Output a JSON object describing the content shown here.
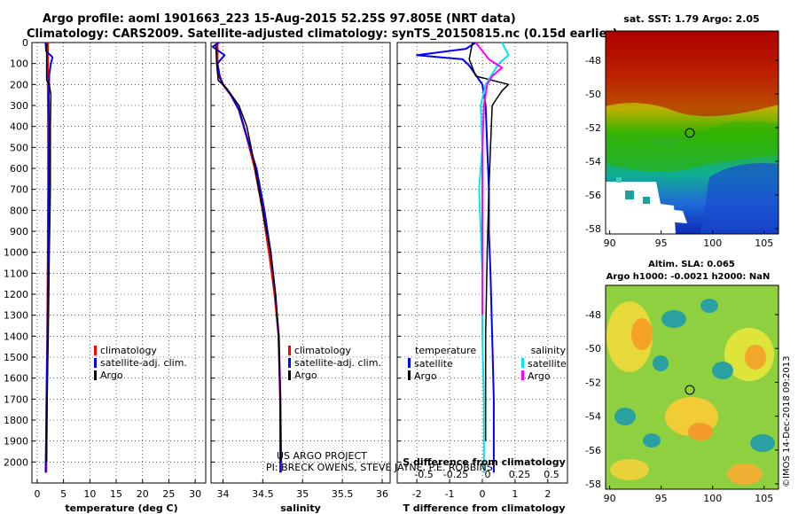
{
  "header": {
    "title_line1": "Argo profile: aoml 1901663_223 15-Aug-2015 52.25S 97.805E (NRT data)",
    "title_line2": "Climatology: CARS2009. Satellite-adjusted climatology: synTS_20150815.nc (0.15d earlier)"
  },
  "colors": {
    "climatology": "#ff0000",
    "satellite": "#0000ff",
    "argo": "#000000",
    "sat_salinity": "#00e5ee",
    "argo_salinity": "#ff00ff"
  },
  "chart_data": [
    {
      "id": "temperature",
      "type": "line",
      "xlabel": "temperature (deg C)",
      "xlim": [
        -1,
        32
      ],
      "ylim": [
        0,
        2100
      ],
      "y_reversed": true,
      "xticks": [
        0,
        5,
        10,
        15,
        20,
        25,
        30
      ],
      "xtick_labels": [
        "0",
        "5",
        "10",
        "15",
        "20",
        "25",
        "30"
      ],
      "yticks": [
        0,
        100,
        200,
        300,
        400,
        500,
        600,
        700,
        800,
        900,
        1000,
        1100,
        1200,
        1300,
        1400,
        1500,
        1600,
        1700,
        1800,
        1900,
        2000
      ],
      "grid": true,
      "legend": {
        "placement": "bottom-right",
        "entries": [
          "climatology",
          "satellite-adj. clim.",
          "Argo"
        ]
      },
      "series": [
        {
          "name": "climatology",
          "color": "#ff0000",
          "width": 2.5,
          "points": [
            [
              2.0,
              0
            ],
            [
              2.0,
              100
            ],
            [
              2.05,
              200
            ],
            [
              2.1,
              400
            ],
            [
              2.1,
              700
            ],
            [
              2.05,
              1000
            ],
            [
              1.95,
              1400
            ],
            [
              1.8,
              1700
            ],
            [
              1.7,
              2050
            ]
          ]
        },
        {
          "name": "satellite-adj. clim.",
          "color": "#0000ff",
          "width": 2,
          "points": [
            [
              1.6,
              0
            ],
            [
              1.7,
              40
            ],
            [
              2.9,
              70
            ],
            [
              2.6,
              100
            ],
            [
              2.3,
              150
            ],
            [
              2.2,
              250
            ],
            [
              2.25,
              400
            ],
            [
              2.2,
              700
            ],
            [
              2.1,
              1000
            ],
            [
              1.95,
              1400
            ],
            [
              1.8,
              1700
            ],
            [
              1.6,
              2050
            ]
          ]
        },
        {
          "name": "Argo",
          "color": "#000000",
          "width": 1.5,
          "points": [
            [
              1.8,
              5
            ],
            [
              1.8,
              100
            ],
            [
              1.8,
              180
            ],
            [
              2.3,
              200
            ],
            [
              2.6,
              250
            ],
            [
              2.5,
              400
            ],
            [
              2.5,
              700
            ],
            [
              2.3,
              1000
            ],
            [
              2.1,
              1400
            ],
            [
              1.9,
              1700
            ],
            [
              1.8,
              2000
            ]
          ]
        }
      ]
    },
    {
      "id": "salinity",
      "type": "line",
      "xlabel": "salinity",
      "xlim": [
        33.85,
        36.1
      ],
      "ylim": [
        0,
        2100
      ],
      "y_reversed": true,
      "xticks": [
        34,
        34.5,
        35,
        35.5,
        36
      ],
      "xtick_labels": [
        "34",
        "34.5",
        "35",
        "35.5",
        "36"
      ],
      "grid": true,
      "legend": {
        "placement": "bottom-right",
        "entries": [
          "climatology",
          "satellite-adj. clim.",
          "Argo"
        ]
      },
      "series": [
        {
          "name": "climatology",
          "color": "#ff0000",
          "width": 2.5,
          "points": [
            [
              33.93,
              0
            ],
            [
              33.93,
              100
            ],
            [
              33.95,
              160
            ],
            [
              34.0,
              200
            ],
            [
              34.1,
              250
            ],
            [
              34.2,
              320
            ],
            [
              34.3,
              450
            ],
            [
              34.4,
              600
            ],
            [
              34.5,
              800
            ],
            [
              34.58,
              1000
            ],
            [
              34.65,
              1200
            ],
            [
              34.7,
              1400
            ],
            [
              34.72,
              1700
            ],
            [
              34.73,
              2050
            ]
          ]
        },
        {
          "name": "satellite-adj. clim.",
          "color": "#0000ff",
          "width": 2,
          "points": [
            [
              33.95,
              0
            ],
            [
              33.87,
              20
            ],
            [
              34.02,
              60
            ],
            [
              33.93,
              100
            ],
            [
              33.96,
              160
            ],
            [
              34.0,
              200
            ],
            [
              34.1,
              250
            ],
            [
              34.2,
              320
            ],
            [
              34.3,
              450
            ],
            [
              34.42,
              600
            ],
            [
              34.52,
              800
            ],
            [
              34.6,
              1000
            ],
            [
              34.66,
              1200
            ],
            [
              34.7,
              1400
            ],
            [
              34.72,
              1700
            ],
            [
              34.72,
              2050
            ]
          ]
        },
        {
          "name": "Argo",
          "color": "#000000",
          "width": 1.5,
          "points": [
            [
              33.91,
              5
            ],
            [
              33.92,
              100
            ],
            [
              33.94,
              180
            ],
            [
              34.05,
              220
            ],
            [
              34.2,
              300
            ],
            [
              34.3,
              400
            ],
            [
              34.38,
              550
            ],
            [
              34.45,
              700
            ],
            [
              34.52,
              850
            ],
            [
              34.6,
              1000
            ],
            [
              34.66,
              1200
            ],
            [
              34.7,
              1400
            ],
            [
              34.72,
              1700
            ],
            [
              34.73,
              2000
            ]
          ]
        }
      ],
      "annotation_line1": "US ARGO PROJECT",
      "annotation_line2": "PI: BRECK OWENS, STEVE JAYNE, P.E. ROBBINS"
    },
    {
      "id": "difference",
      "type": "line",
      "xlabel": "T difference from climatology",
      "xlabel_top": "S difference from climatology",
      "xlim": [
        -2.6,
        2.6
      ],
      "ylim": [
        0,
        2100
      ],
      "y_reversed": true,
      "xticks": [
        -2,
        -1,
        0,
        1,
        2
      ],
      "xtick_labels": [
        "-2",
        "-1",
        "0",
        "1",
        "2"
      ],
      "s_ticks": [
        -0.5,
        -0.25,
        0,
        0.25,
        0.5
      ],
      "s_tick_labels": [
        "-0.5",
        "-0.25",
        "0",
        "0.25",
        "0.5"
      ],
      "grid": true,
      "legend": {
        "placement": "bottom",
        "temperature_title": "temperature",
        "salinity_title": "salinity",
        "t_entries": [
          "satellite",
          "Argo"
        ],
        "s_entries": [
          "satellite",
          "Argo"
        ]
      },
      "series": [
        {
          "name": "satellite",
          "color": "#0000ff",
          "width": 2,
          "points": [
            [
              -0.2,
              0
            ],
            [
              -0.5,
              30
            ],
            [
              -2.0,
              60
            ],
            [
              -0.6,
              80
            ],
            [
              -0.4,
              110
            ],
            [
              0.0,
              200
            ],
            [
              0.1,
              300
            ],
            [
              0.15,
              500
            ],
            [
              0.2,
              700
            ],
            [
              0.2,
              900
            ],
            [
              0.25,
              1100
            ],
            [
              0.3,
              1400
            ],
            [
              0.35,
              1700
            ],
            [
              0.35,
              2050
            ]
          ]
        },
        {
          "name": "Argo",
          "color": "#000000",
          "width": 1.5,
          "points": [
            [
              -0.3,
              0
            ],
            [
              -0.4,
              80
            ],
            [
              -0.2,
              160
            ],
            [
              0.8,
              200
            ],
            [
              0.6,
              230
            ],
            [
              0.3,
              300
            ],
            [
              0.25,
              500
            ],
            [
              0.2,
              700
            ],
            [
              0.15,
              1000
            ],
            [
              0.1,
              1400
            ],
            [
              0.1,
              1700
            ],
            [
              0.1,
              1900
            ]
          ]
        },
        {
          "name": "satellite",
          "color": "#00e5ee",
          "width": 2,
          "points": [
            [
              0.6,
              0
            ],
            [
              0.8,
              60
            ],
            [
              0.5,
              100
            ],
            [
              0.1,
              200
            ],
            [
              -0.05,
              300
            ],
            [
              0.0,
              500
            ],
            [
              -0.1,
              700
            ],
            [
              -0.05,
              900
            ],
            [
              0.0,
              1100
            ],
            [
              0.0,
              1400
            ],
            [
              0.05,
              1700
            ],
            [
              0.05,
              2050
            ]
          ]
        },
        {
          "name": "Argo",
          "color": "#ff00ff",
          "width": 2,
          "points": [
            [
              -0.2,
              0
            ],
            [
              0.2,
              80
            ],
            [
              0.6,
              120
            ],
            [
              0.3,
              160
            ],
            [
              0.15,
              200
            ],
            [
              0.05,
              300
            ],
            [
              0.0,
              500
            ],
            [
              0.0,
              700
            ],
            [
              0.0,
              1000
            ],
            [
              0.0,
              1300
            ]
          ]
        }
      ]
    }
  ],
  "map_sst": {
    "title": "sat. SST: 1.79 Argo: 2.05",
    "xticks": [
      "90",
      "95",
      "100",
      "105"
    ],
    "yticks": [
      "-48",
      "-50",
      "-52",
      "-54",
      "-56",
      "-58"
    ]
  },
  "map_sla": {
    "title_line1": "Altim. SLA: 0.065",
    "title_line2": "Argo h1000: -0.0021 h2000: NaN",
    "xticks": [
      "90",
      "95",
      "100",
      "105"
    ],
    "yticks": [
      "-48",
      "-50",
      "-52",
      "-54",
      "-56",
      "-58"
    ],
    "credit": "©IMOS 14-Dec-2018 09:2013"
  }
}
